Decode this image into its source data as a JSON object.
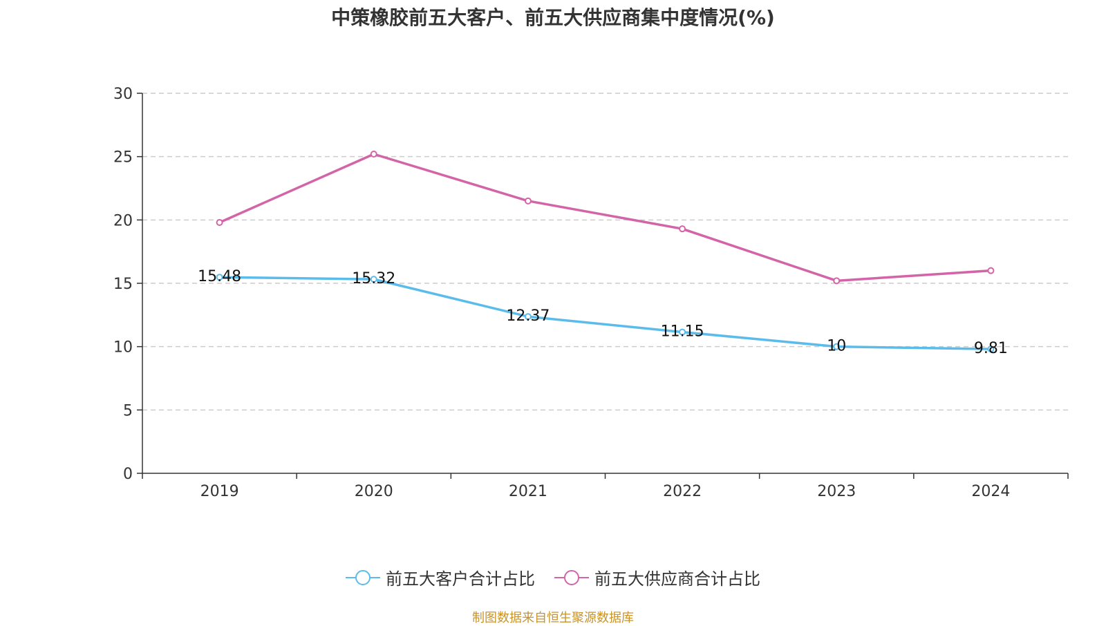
{
  "chart_data": {
    "type": "line",
    "title": "中策橡胶前五大客户、前五大供应商集中度情况(%)",
    "categories": [
      "2019",
      "2020",
      "2021",
      "2022",
      "2023",
      "2024"
    ],
    "ylim": [
      0,
      30
    ],
    "yticks": [
      0,
      5,
      10,
      15,
      20,
      25,
      30
    ],
    "grid": true,
    "legend_position": "bottom",
    "series": [
      {
        "name": "前五大客户合计占比",
        "color": "#5bbcec",
        "values": [
          15.48,
          15.32,
          12.37,
          11.15,
          10,
          9.81
        ],
        "labels": [
          "15.48",
          "15.32",
          "12.37",
          "11.15",
          "10",
          "9.81"
        ]
      },
      {
        "name": "前五大供应商合计占比",
        "color": "#d364a8",
        "values": [
          19.8,
          25.2,
          21.5,
          19.3,
          15.2,
          16.0
        ]
      }
    ]
  },
  "source_note": "制图数据来自恒生聚源数据库"
}
